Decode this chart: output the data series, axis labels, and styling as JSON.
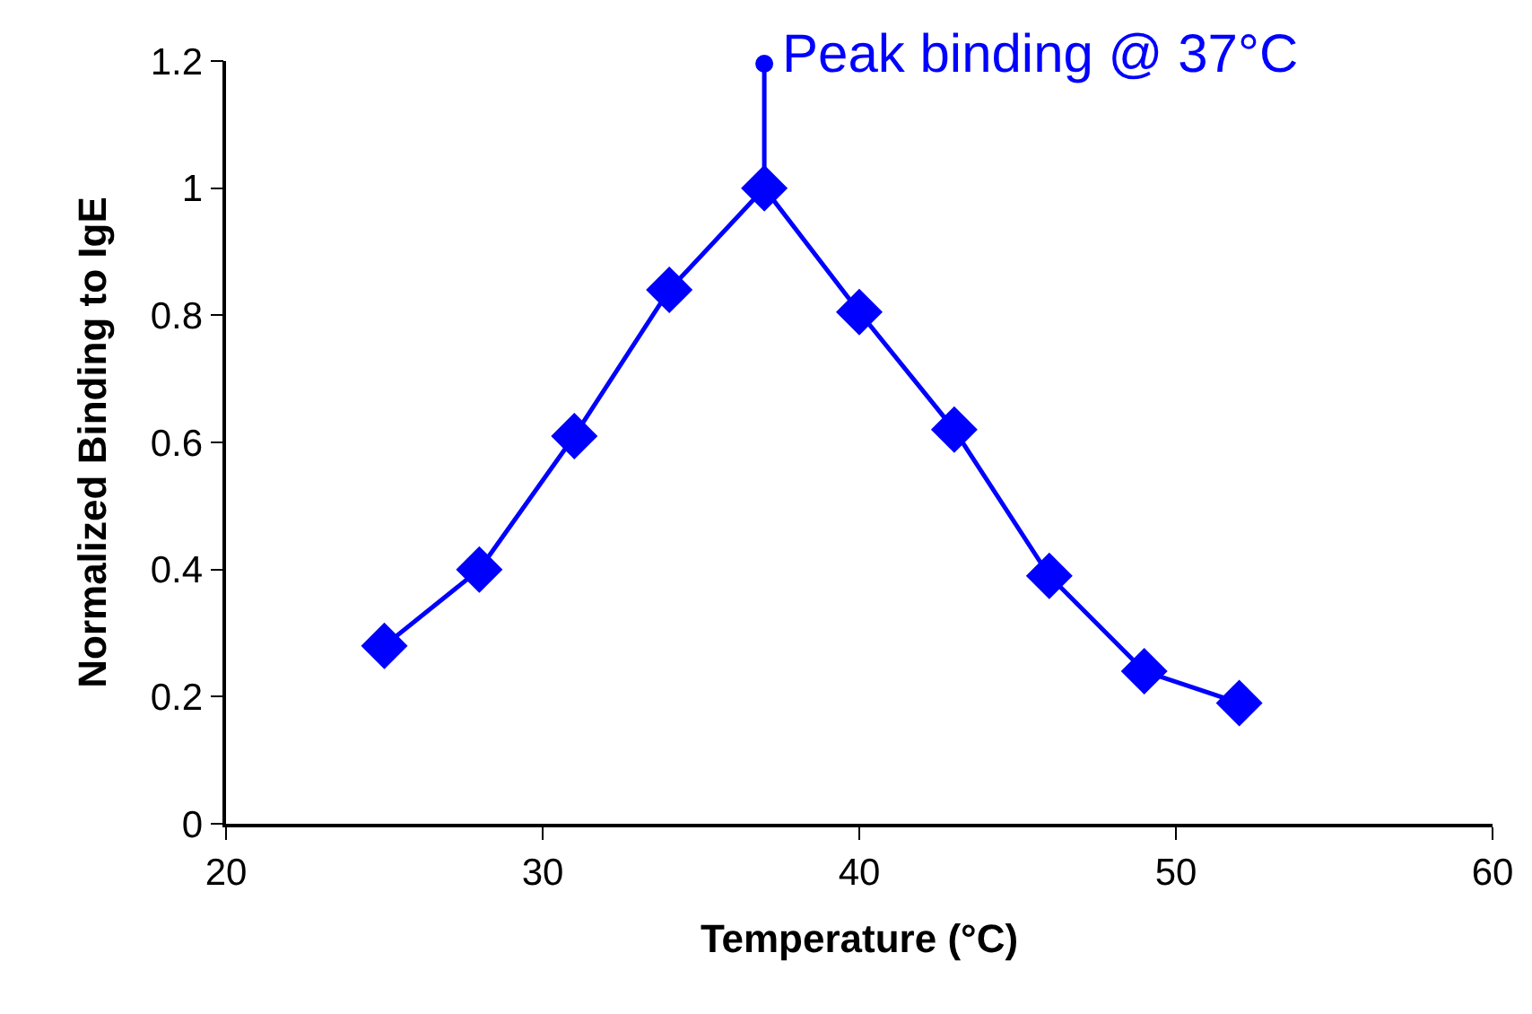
{
  "chart_data": {
    "type": "line",
    "xlabel": "Temperature (°C)",
    "ylabel": "Normalized Binding to IgE",
    "x": [
      25,
      28,
      31,
      34,
      37,
      40,
      43,
      46,
      49,
      52
    ],
    "series": [
      {
        "color": "#0000ff",
        "values": [
          0.28,
          0.4,
          0.61,
          0.84,
          1.0,
          0.805,
          0.62,
          0.39,
          0.24,
          0.19
        ]
      }
    ],
    "xlim": [
      20,
      60
    ],
    "xticks": [
      20,
      30,
      40,
      50,
      60
    ],
    "ylim": [
      0,
      1.2
    ],
    "yticks": [
      0,
      0.2,
      0.4,
      0.6,
      0.8,
      1,
      1.2
    ],
    "annotations": [
      {
        "text": "Peak binding @ 37°C",
        "x": 37,
        "y": 1.2
      }
    ],
    "marker": "diamond",
    "line_style": "solid",
    "grid": false,
    "legend": false
  }
}
